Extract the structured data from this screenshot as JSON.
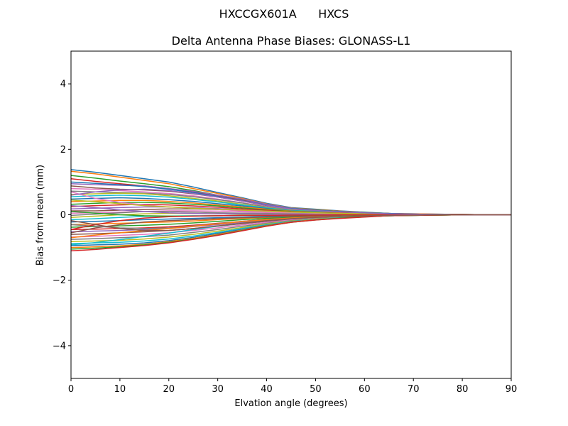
{
  "figure": {
    "suptitle": "HXCCGX601A      HXCS"
  },
  "colors": {
    "cycle": [
      "#1f77b4",
      "#ff7f0e",
      "#2ca02c",
      "#d62728",
      "#9467bd",
      "#8c564b",
      "#e377c2",
      "#7f7f7f",
      "#bcbd22",
      "#17becf"
    ]
  },
  "chart_data": {
    "type": "line",
    "title": "Delta Antenna Phase Biases: GLONASS-L1",
    "xlabel": "Elvation angle (degrees)",
    "ylabel": "Bias from mean (mm)",
    "xlim": [
      0,
      90
    ],
    "ylim": [
      -5,
      5
    ],
    "xticks": [
      0,
      10,
      20,
      30,
      40,
      50,
      60,
      70,
      80,
      90
    ],
    "yticks": [
      -4,
      -2,
      0,
      2,
      4
    ],
    "ytick_labels": [
      "−4",
      "−2",
      "0",
      "2",
      "4"
    ],
    "grid": false,
    "legend": "none",
    "x": [
      0,
      5,
      10,
      15,
      20,
      25,
      30,
      35,
      40,
      45,
      50,
      55,
      60,
      65,
      70,
      75,
      80,
      85,
      90
    ],
    "series": [
      {
        "values": [
          1.38,
          1.3,
          1.2,
          1.1,
          1.0,
          0.85,
          0.68,
          0.52,
          0.35,
          0.22,
          0.17,
          0.12,
          0.08,
          0.04,
          0.03,
          0.02,
          0.01,
          0.0,
          0.0
        ]
      },
      {
        "values": [
          1.33,
          1.25,
          1.15,
          1.05,
          0.95,
          0.8,
          0.65,
          0.5,
          0.33,
          0.21,
          0.16,
          0.11,
          0.07,
          0.04,
          0.03,
          0.02,
          0.01,
          0.0,
          0.0
        ]
      },
      {
        "values": [
          1.2,
          1.12,
          1.03,
          0.95,
          0.86,
          0.74,
          0.6,
          0.46,
          0.31,
          0.2,
          0.15,
          0.1,
          0.07,
          0.04,
          0.02,
          0.01,
          0.01,
          0.0,
          0.0
        ]
      },
      {
        "values": [
          1.1,
          1.02,
          0.95,
          0.88,
          0.8,
          0.7,
          0.57,
          0.44,
          0.3,
          0.19,
          0.14,
          0.1,
          0.06,
          0.04,
          0.02,
          0.01,
          0.01,
          0.0,
          0.0
        ]
      },
      {
        "values": [
          0.95,
          0.92,
          0.9,
          0.88,
          0.8,
          0.72,
          0.6,
          0.48,
          0.32,
          0.2,
          0.14,
          0.1,
          0.06,
          0.03,
          0.02,
          0.01,
          0.0,
          0.0,
          0.0
        ]
      },
      {
        "values": [
          0.88,
          0.82,
          0.78,
          0.76,
          0.72,
          0.64,
          0.54,
          0.42,
          0.28,
          0.18,
          0.13,
          0.09,
          0.06,
          0.03,
          0.02,
          0.01,
          0.0,
          0.0,
          0.0
        ]
      },
      {
        "values": [
          0.8,
          0.78,
          0.74,
          0.7,
          0.65,
          0.58,
          0.48,
          0.37,
          0.25,
          0.16,
          0.12,
          0.08,
          0.05,
          0.03,
          0.02,
          0.01,
          0.0,
          0.0,
          0.0
        ]
      },
      {
        "values": [
          0.72,
          0.7,
          0.68,
          0.66,
          0.62,
          0.55,
          0.46,
          0.36,
          0.24,
          0.15,
          0.11,
          0.08,
          0.05,
          0.03,
          0.02,
          0.01,
          0.0,
          0.0,
          0.0
        ]
      },
      {
        "values": [
          0.62,
          0.64,
          0.66,
          0.64,
          0.58,
          0.5,
          0.42,
          0.32,
          0.22,
          0.14,
          0.1,
          0.07,
          0.05,
          0.03,
          0.02,
          0.01,
          0.0,
          0.0,
          0.0
        ]
      },
      {
        "values": [
          0.55,
          0.58,
          0.6,
          0.58,
          0.54,
          0.47,
          0.39,
          0.3,
          0.21,
          0.13,
          0.1,
          0.07,
          0.04,
          0.02,
          0.01,
          0.01,
          0.0,
          0.0,
          0.0
        ]
      },
      {
        "values": [
          0.48,
          0.5,
          0.52,
          0.5,
          0.46,
          0.41,
          0.34,
          0.27,
          0.19,
          0.12,
          0.09,
          0.06,
          0.04,
          0.02,
          0.01,
          0.01,
          0.0,
          0.0,
          0.0
        ]
      },
      {
        "values": [
          0.4,
          0.42,
          0.44,
          0.44,
          0.41,
          0.36,
          0.3,
          0.24,
          0.17,
          0.11,
          0.08,
          0.06,
          0.04,
          0.02,
          0.01,
          0.01,
          0.0,
          0.0,
          0.0
        ]
      },
      {
        "values": [
          0.32,
          0.35,
          0.38,
          0.38,
          0.36,
          0.32,
          0.27,
          0.21,
          0.15,
          0.1,
          0.07,
          0.05,
          0.03,
          0.02,
          0.01,
          0.01,
          0.0,
          0.0,
          0.0
        ]
      },
      {
        "values": [
          0.25,
          0.28,
          0.3,
          0.32,
          0.3,
          0.27,
          0.23,
          0.18,
          0.13,
          0.09,
          0.06,
          0.05,
          0.03,
          0.02,
          0.01,
          0.0,
          0.0,
          0.0,
          0.0
        ]
      },
      {
        "values": [
          0.18,
          0.2,
          0.22,
          0.24,
          0.24,
          0.22,
          0.19,
          0.15,
          0.11,
          0.08,
          0.06,
          0.04,
          0.03,
          0.02,
          0.01,
          0.0,
          0.0,
          0.0,
          0.0
        ]
      },
      {
        "values": [
          0.12,
          0.12,
          0.14,
          0.16,
          0.18,
          0.18,
          0.16,
          0.13,
          0.1,
          0.07,
          0.05,
          0.04,
          0.02,
          0.01,
          0.01,
          0.0,
          0.0,
          0.0,
          0.0
        ]
      },
      {
        "values": [
          0.05,
          0.06,
          0.08,
          0.1,
          0.12,
          0.12,
          0.11,
          0.09,
          0.07,
          0.05,
          0.04,
          0.03,
          0.02,
          0.01,
          0.01,
          0.0,
          0.0,
          0.0,
          0.0
        ]
      },
      {
        "values": [
          -0.02,
          0.02,
          0.06,
          0.1,
          0.1,
          0.08,
          0.06,
          0.05,
          0.04,
          0.03,
          0.03,
          0.02,
          0.01,
          0.01,
          0.0,
          0.0,
          0.0,
          0.0,
          0.0
        ]
      },
      {
        "values": [
          -0.08,
          -0.04,
          0.0,
          0.03,
          0.04,
          0.04,
          0.03,
          0.02,
          0.02,
          0.02,
          0.01,
          0.01,
          0.01,
          0.0,
          0.0,
          0.0,
          0.0,
          0.0,
          0.0
        ]
      },
      {
        "values": [
          -0.15,
          -0.12,
          -0.08,
          -0.05,
          -0.04,
          -0.03,
          -0.03,
          -0.02,
          -0.02,
          -0.01,
          -0.01,
          -0.01,
          0.0,
          0.0,
          0.0,
          0.0,
          0.0,
          0.0,
          0.0
        ]
      },
      {
        "values": [
          -0.22,
          -0.2,
          -0.18,
          -0.15,
          -0.13,
          -0.11,
          -0.09,
          -0.07,
          -0.05,
          -0.04,
          -0.03,
          -0.02,
          -0.01,
          -0.01,
          0.0,
          0.0,
          0.0,
          0.0,
          0.0
        ]
      },
      {
        "values": [
          -0.3,
          -0.28,
          -0.26,
          -0.24,
          -0.22,
          -0.19,
          -0.15,
          -0.11,
          -0.08,
          -0.06,
          -0.04,
          -0.03,
          -0.02,
          -0.01,
          -0.01,
          0.0,
          0.0,
          0.0,
          0.0
        ]
      },
      {
        "values": [
          -0.38,
          -0.36,
          -0.34,
          -0.32,
          -0.29,
          -0.25,
          -0.2,
          -0.15,
          -0.11,
          -0.08,
          -0.06,
          -0.04,
          -0.03,
          -0.02,
          -0.01,
          0.0,
          0.0,
          0.0,
          0.0
        ]
      },
      {
        "values": [
          -0.45,
          -0.44,
          -0.42,
          -0.4,
          -0.37,
          -0.32,
          -0.26,
          -0.2,
          -0.14,
          -0.1,
          -0.07,
          -0.05,
          -0.03,
          -0.02,
          -0.01,
          0.0,
          0.0,
          0.0,
          0.0
        ]
      },
      {
        "values": [
          -0.52,
          -0.5,
          -0.48,
          -0.45,
          -0.42,
          -0.36,
          -0.3,
          -0.23,
          -0.17,
          -0.12,
          -0.08,
          -0.06,
          -0.04,
          -0.02,
          -0.01,
          0.0,
          0.0,
          0.0,
          0.0
        ]
      },
      {
        "values": [
          -0.6,
          -0.58,
          -0.55,
          -0.52,
          -0.48,
          -0.42,
          -0.35,
          -0.27,
          -0.2,
          -0.14,
          -0.1,
          -0.07,
          -0.04,
          -0.02,
          -0.01,
          0.0,
          0.0,
          0.0,
          0.0
        ]
      },
      {
        "values": [
          -0.68,
          -0.66,
          -0.63,
          -0.6,
          -0.55,
          -0.48,
          -0.4,
          -0.31,
          -0.23,
          -0.16,
          -0.11,
          -0.08,
          -0.05,
          -0.03,
          -0.01,
          0.0,
          0.0,
          0.0,
          0.0
        ]
      },
      {
        "values": [
          -0.75,
          -0.73,
          -0.7,
          -0.67,
          -0.62,
          -0.54,
          -0.45,
          -0.35,
          -0.26,
          -0.18,
          -0.12,
          -0.08,
          -0.05,
          -0.03,
          -0.01,
          0.0,
          0.0,
          0.0,
          0.0
        ]
      },
      {
        "values": [
          -0.82,
          -0.8,
          -0.78,
          -0.74,
          -0.68,
          -0.6,
          -0.5,
          -0.39,
          -0.28,
          -0.19,
          -0.13,
          -0.09,
          -0.06,
          -0.03,
          -0.02,
          -0.01,
          0.0,
          0.0,
          0.0
        ]
      },
      {
        "values": [
          -0.88,
          -0.86,
          -0.84,
          -0.8,
          -0.74,
          -0.65,
          -0.54,
          -0.42,
          -0.3,
          -0.2,
          -0.14,
          -0.09,
          -0.06,
          -0.03,
          -0.02,
          -0.01,
          0.0,
          0.0,
          0.0
        ]
      },
      {
        "values": [
          -0.94,
          -0.92,
          -0.9,
          -0.86,
          -0.79,
          -0.69,
          -0.57,
          -0.45,
          -0.32,
          -0.21,
          -0.15,
          -0.1,
          -0.06,
          -0.03,
          -0.02,
          -0.01,
          0.0,
          0.0,
          0.0
        ]
      },
      {
        "values": [
          -1.0,
          -0.98,
          -0.95,
          -0.9,
          -0.82,
          -0.72,
          -0.6,
          -0.47,
          -0.33,
          -0.22,
          -0.15,
          -0.1,
          -0.06,
          -0.03,
          -0.02,
          -0.01,
          0.0,
          0.0,
          0.0
        ]
      },
      {
        "values": [
          -1.05,
          -1.02,
          -0.98,
          -0.92,
          -0.84,
          -0.74,
          -0.62,
          -0.48,
          -0.34,
          -0.23,
          -0.16,
          -0.1,
          -0.06,
          -0.03,
          -0.02,
          -0.01,
          0.0,
          0.0,
          0.0
        ]
      },
      {
        "values": [
          -1.1,
          -1.06,
          -1.0,
          -0.94,
          -0.86,
          -0.75,
          -0.63,
          -0.49,
          -0.35,
          -0.23,
          -0.16,
          -0.11,
          -0.07,
          -0.03,
          -0.02,
          -0.01,
          0.0,
          0.0,
          0.0
        ]
      },
      {
        "values": [
          0.28,
          0.22,
          0.15,
          0.1,
          0.06,
          0.04,
          0.03,
          0.03,
          0.02,
          0.02,
          0.01,
          0.01,
          0.0,
          0.0,
          0.0,
          0.0,
          0.0,
          0.0,
          0.0
        ]
      },
      {
        "values": [
          -0.55,
          -0.4,
          -0.3,
          -0.22,
          -0.18,
          -0.15,
          -0.12,
          -0.09,
          -0.07,
          -0.05,
          -0.04,
          -0.03,
          -0.02,
          -0.01,
          0.0,
          0.0,
          0.0,
          0.0,
          0.0
        ]
      },
      {
        "values": [
          0.7,
          0.5,
          0.38,
          0.3,
          0.24,
          0.2,
          0.16,
          0.12,
          0.09,
          0.07,
          0.05,
          0.04,
          0.03,
          0.02,
          0.01,
          0.0,
          0.0,
          0.0,
          0.0
        ]
      },
      {
        "values": [
          -0.3,
          -0.35,
          -0.4,
          -0.42,
          -0.4,
          -0.34,
          -0.27,
          -0.2,
          -0.14,
          -0.1,
          -0.07,
          -0.05,
          -0.03,
          -0.02,
          -0.01,
          0.0,
          0.0,
          0.0,
          0.0
        ]
      },
      {
        "values": [
          0.45,
          0.4,
          0.34,
          0.28,
          0.24,
          0.2,
          0.17,
          0.14,
          0.11,
          0.08,
          0.06,
          0.04,
          0.03,
          0.02,
          0.01,
          0.0,
          0.0,
          0.0,
          0.0
        ]
      },
      {
        "values": [
          -0.92,
          -0.85,
          -0.76,
          -0.66,
          -0.56,
          -0.45,
          -0.35,
          -0.26,
          -0.18,
          -0.12,
          -0.08,
          -0.05,
          -0.03,
          -0.02,
          -0.01,
          0.0,
          0.0,
          0.0,
          0.0
        ]
      },
      {
        "values": [
          1.0,
          0.96,
          0.92,
          0.86,
          0.78,
          0.68,
          0.56,
          0.43,
          0.3,
          0.19,
          0.14,
          0.1,
          0.06,
          0.04,
          0.02,
          0.01,
          0.0,
          0.0,
          0.0
        ]
      },
      {
        "values": [
          -0.7,
          -0.62,
          -0.55,
          -0.48,
          -0.42,
          -0.35,
          -0.28,
          -0.21,
          -0.15,
          -0.1,
          -0.07,
          -0.05,
          -0.03,
          -0.02,
          -0.01,
          0.0,
          0.0,
          0.0,
          0.0
        ]
      },
      {
        "values": [
          0.1,
          0.05,
          0.0,
          -0.03,
          -0.04,
          -0.04,
          -0.03,
          -0.02,
          -0.02,
          -0.01,
          -0.01,
          0.0,
          0.0,
          0.0,
          0.0,
          0.0,
          0.0,
          0.0,
          0.0
        ]
      },
      {
        "values": [
          -0.45,
          -0.3,
          -0.18,
          -0.1,
          -0.06,
          -0.04,
          -0.03,
          -0.02,
          -0.02,
          -0.01,
          -0.01,
          0.0,
          0.0,
          0.0,
          0.0,
          0.0,
          0.0,
          0.0,
          0.0
        ]
      },
      {
        "values": [
          0.6,
          0.7,
          0.76,
          0.78,
          0.74,
          0.65,
          0.54,
          0.42,
          0.29,
          0.18,
          0.13,
          0.09,
          0.06,
          0.03,
          0.02,
          0.01,
          0.0,
          0.0,
          0.0
        ]
      },
      {
        "values": [
          -0.18,
          -0.3,
          -0.42,
          -0.48,
          -0.48,
          -0.42,
          -0.34,
          -0.26,
          -0.18,
          -0.12,
          -0.08,
          -0.05,
          -0.03,
          -0.02,
          -0.01,
          0.0,
          0.0,
          0.0,
          0.0
        ]
      }
    ]
  }
}
